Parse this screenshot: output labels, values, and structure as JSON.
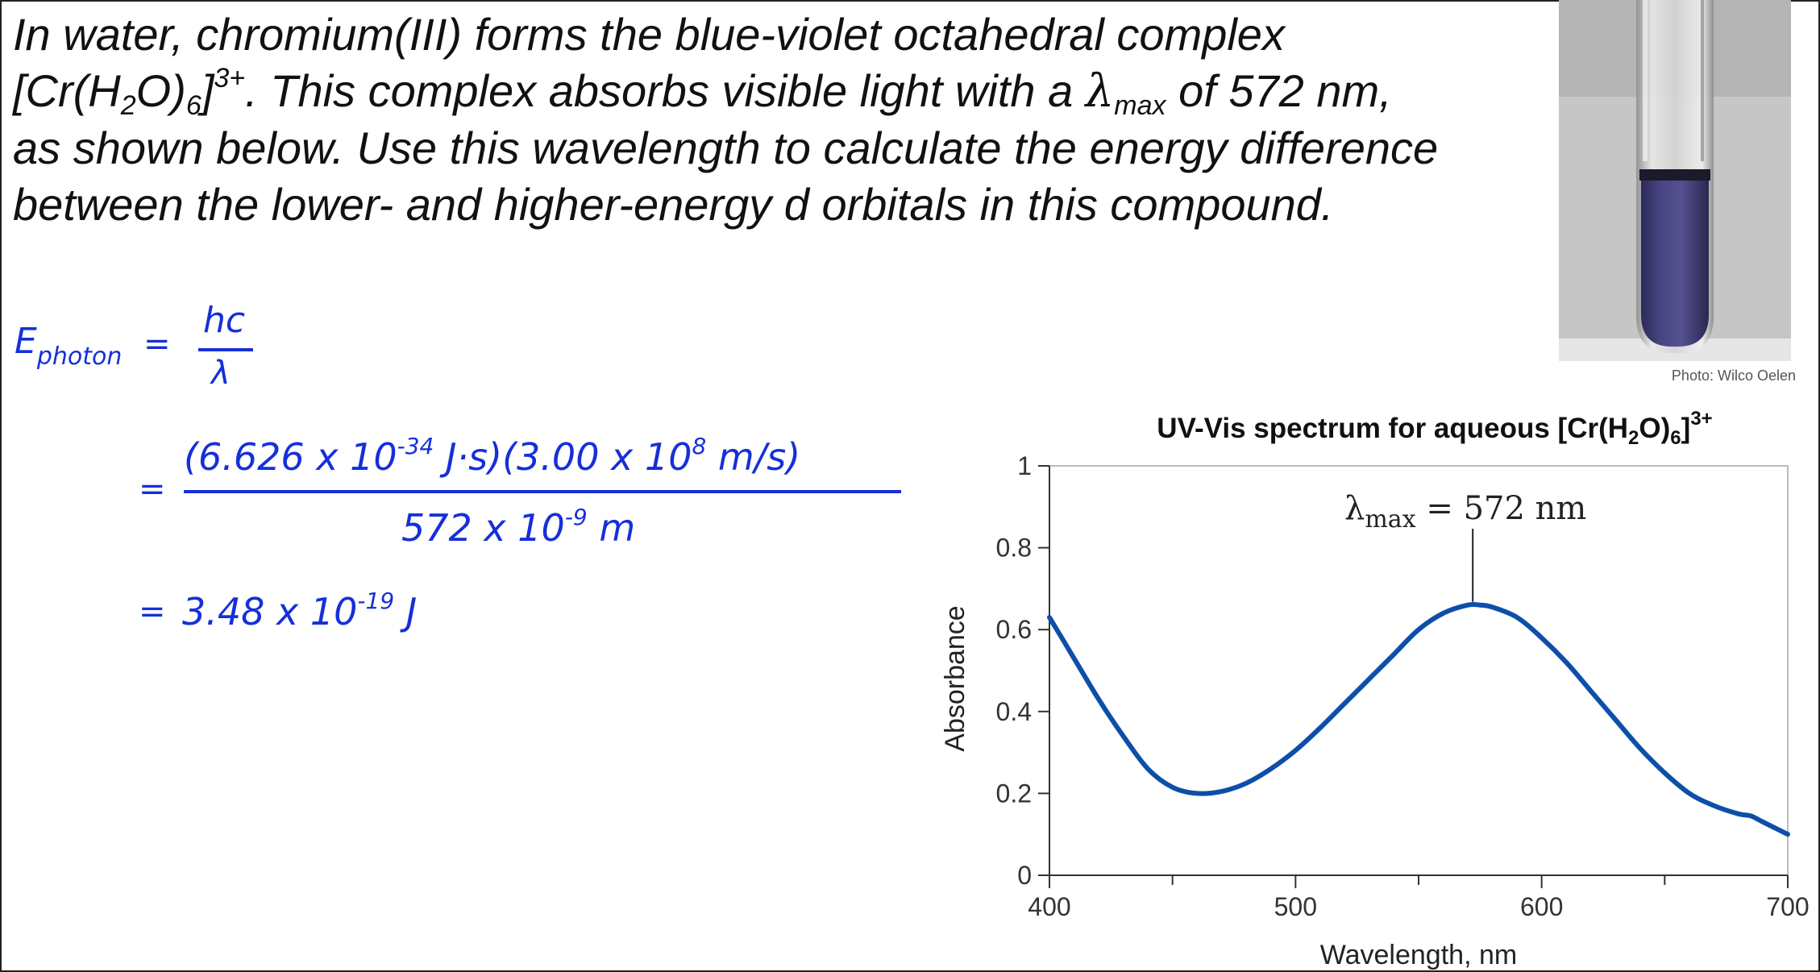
{
  "problem": {
    "line1": "In water, chromium(III) forms the blue-violet octahedral complex",
    "formula_open": "[Cr(H",
    "formula_sub2": "2",
    "formula_mid": "O)",
    "formula_sub6": "6",
    "formula_close": "]",
    "formula_charge": "3+",
    "line2_a": ". This complex absorbs visible light with a ",
    "lambda": "λ",
    "lambda_sub": "max",
    "line2_b": " of 572 nm,",
    "line3": "as shown below. Use this wavelength to calculate the energy difference",
    "line4": "between the lower- and higher-energy d orbitals in this compound."
  },
  "work": {
    "e_symbol": "E",
    "e_sub": "photon",
    "eq1": "=",
    "hc": "hc",
    "lambda": "λ",
    "eq2": "=",
    "num_a": "(6.626 x 10",
    "num_a_exp": "-34",
    "num_b": " J·s)(3.00 x 10",
    "num_b_exp": "8",
    "num_c": " m/s)",
    "den_a": "572 x 10",
    "den_exp": "-9",
    "den_b": " m",
    "eq3": "=",
    "res_a": "3.48 x 10",
    "res_exp": "-19",
    "res_b": " J"
  },
  "photo": {
    "credit": "Photo: Wilco Oelen"
  },
  "chart_data": {
    "type": "line",
    "title_a": "UV-Vis spectrum for aqueous [Cr(H",
    "title_sub2": "2",
    "title_b": "O)",
    "title_sub6": "6",
    "title_c": "]",
    "title_sup": "3+",
    "xlabel": "Wavelength, nm",
    "ylabel": "Absorbance",
    "xlim": [
      400,
      700
    ],
    "ylim": [
      0,
      1
    ],
    "x_ticks": [
      "400",
      "500",
      "600",
      "700"
    ],
    "x_tick_values": [
      400,
      500,
      600,
      700
    ],
    "y_ticks": [
      "0",
      "0.2",
      "0.4",
      "0.6",
      "0.8",
      "1"
    ],
    "y_tick_values": [
      0,
      0.2,
      0.4,
      0.6,
      0.8,
      1
    ],
    "annotation_lambda": "λ",
    "annotation_sub": "max",
    "annotation_value": " = 572 nm",
    "annotation_x": 572,
    "line_color": "#0d4fa8",
    "series": [
      {
        "x": [
          400,
          410,
          420,
          430,
          440,
          450,
          460,
          470,
          480,
          490,
          500,
          510,
          520,
          530,
          540,
          550,
          560,
          570,
          575,
          580,
          590,
          600,
          610,
          620,
          630,
          640,
          650,
          660,
          670,
          680,
          685,
          690,
          700
        ],
        "values": [
          0.63,
          0.53,
          0.43,
          0.34,
          0.26,
          0.215,
          0.2,
          0.205,
          0.225,
          0.26,
          0.305,
          0.36,
          0.42,
          0.48,
          0.54,
          0.6,
          0.64,
          0.66,
          0.66,
          0.655,
          0.63,
          0.58,
          0.52,
          0.45,
          0.38,
          0.31,
          0.25,
          0.2,
          0.17,
          0.15,
          0.145,
          0.13,
          0.1
        ]
      }
    ]
  }
}
